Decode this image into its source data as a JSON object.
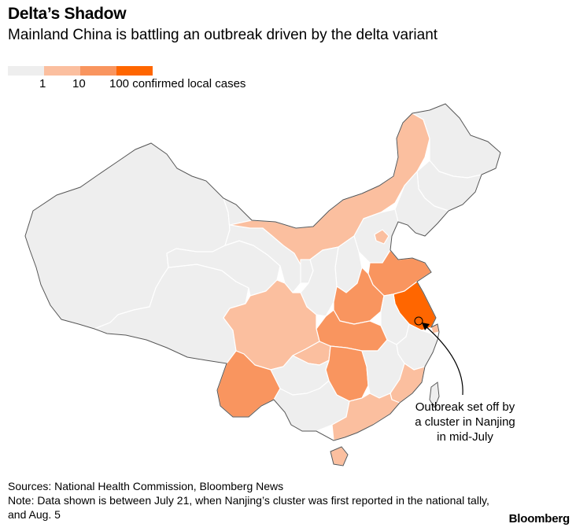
{
  "title": "Delta’s Shadow",
  "subtitle": "Mainland China is battling an outbreak driven by the delta variant",
  "legend": {
    "colors": [
      "#eeeeee",
      "#fbbf9f",
      "#f9955f",
      "#ff6600"
    ],
    "tick_1": "1",
    "tick_10": "10",
    "tick_100": "100 confirmed local cases"
  },
  "map_regions": {
    "none": "#eeeeee",
    "low": "#fbbf9f",
    "mid": "#f9955f",
    "high": "#ff6600",
    "border": "#ffffff",
    "outline": "#555555"
  },
  "annotation": {
    "line1": "Outbreak set off by",
    "line2": "a cluster in Nanjing",
    "line3": "in mid-July"
  },
  "footer": {
    "sources": "Sources: National Health Commission, Bloomberg News",
    "note": "Note: Data shown is between July 21, when Nanjing’s cluster was first reported in the national tally, and Aug. 5"
  },
  "brand": "Bloomberg"
}
